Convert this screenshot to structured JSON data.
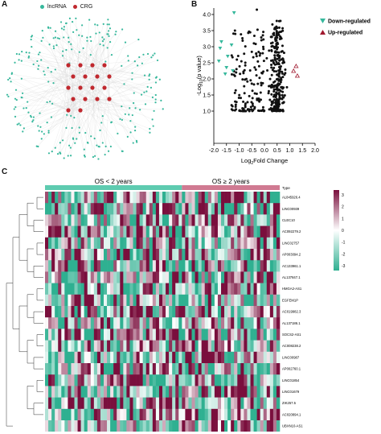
{
  "panel_a": {
    "letter": "A",
    "legend": [
      {
        "label": "lncRNA",
        "color": "#36b89c"
      },
      {
        "label": "CRG",
        "color": "#c0282e"
      }
    ]
  },
  "panel_b": {
    "letter": "B",
    "legend": [
      {
        "label": "Down-regulated",
        "color": "#36b89c",
        "shape": "triangle-down"
      },
      {
        "label": "Up-regulated",
        "color": "#a0182e",
        "shape": "triangle-up"
      }
    ]
  },
  "panel_c": {
    "letter": "C",
    "groups": [
      {
        "label": "OS < 2 years",
        "color": "#5ecbb0"
      },
      {
        "label": "OS ≥ 2 years",
        "color": "#d07a92"
      }
    ],
    "type_label": "Type",
    "colorbar": {
      "ticks": [
        "3",
        "2",
        "1",
        "0",
        "-1",
        "-2",
        "-3"
      ],
      "high_color": "#7a0f3d",
      "mid_color": "#ffffff",
      "low_color": "#2fb091"
    },
    "genes": [
      "AL845926.4",
      "LINC00939",
      "CLEC10",
      "AC092279.2",
      "LINC02757",
      "AP003094.2",
      "AC133961.1",
      "AL137847.1",
      "HMGA2-AS1",
      "EGFEM1P",
      "AC019982.3",
      "AL137186.1",
      "SOCS2-AS1",
      "AC008238.2",
      "LINC00987",
      "AP002760.1",
      "LINC01854",
      "LINC01679",
      "ZIK257.5",
      "AC020894.1",
      "UBXN10-AS1"
    ]
  },
  "chart_data": [
    {
      "type": "network",
      "panel": "A",
      "title": "",
      "legend": [
        "lncRNA",
        "CRG"
      ],
      "node_types": {
        "lncRNA": "#36b89c",
        "CRG": "#c0282e"
      }
    },
    {
      "type": "scatter",
      "panel": "B",
      "title": "",
      "xlabel": "Log2Fold Change",
      "ylabel": "-Log10(p value)",
      "xlim": [
        -2.0,
        2.0
      ],
      "ylim": [
        0,
        4.2
      ],
      "xticks": [
        "-2.0",
        "-1.5",
        "-1.0",
        "-0.5",
        "0.0",
        "0.5",
        "1.0",
        "1.5",
        "2.0"
      ],
      "yticks": [
        "1.0",
        "1.5",
        "2.0",
        "2.5",
        "3.0",
        "3.5",
        "4.0"
      ],
      "series": [
        {
          "name": "Down-regulated",
          "color": "#36b89c",
          "marker": "triangle-down",
          "points": [
            [
              -1.2,
              4.05
            ],
            [
              -1.7,
              3.15
            ],
            [
              -1.3,
              3.05
            ],
            [
              -1.75,
              2.95
            ],
            [
              -1.45,
              2.7
            ],
            [
              -1.8,
              2.55
            ],
            [
              -1.5,
              2.35
            ],
            [
              -1.25,
              2.25
            ],
            [
              -1.55,
              2.15
            ]
          ]
        },
        {
          "name": "Up-regulated",
          "color": "#a0182e",
          "marker": "triangle-up",
          "points": [
            [
              1.25,
              2.4
            ],
            [
              1.15,
              2.25
            ],
            [
              1.3,
              2.1
            ]
          ]
        }
      ]
    },
    {
      "type": "heatmap",
      "panel": "C",
      "rows": 21,
      "groups": [
        "OS < 2 years",
        "OS ≥ 2 years"
      ],
      "color_range": [
        -3,
        3
      ]
    }
  ]
}
